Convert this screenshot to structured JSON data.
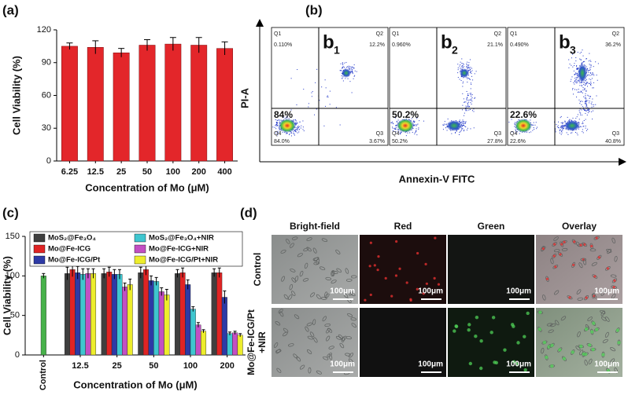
{
  "chart_data": [
    {
      "type": "bar",
      "panel_label": "(a)",
      "x_label": "Concentration of Mo (μM)",
      "y_label": "Cell Viability (%)",
      "categories": [
        "6.25",
        "12.5",
        "25",
        "50",
        "100",
        "200",
        "400"
      ],
      "values": [
        105,
        104,
        99,
        106,
        107,
        106,
        103
      ],
      "errors": [
        3,
        6,
        4,
        5,
        6,
        7,
        6
      ],
      "color": "#e3262a",
      "ylim": [
        0,
        120
      ],
      "yticks": [
        0,
        30,
        60,
        90,
        120
      ]
    },
    {
      "type": "grouped_bar",
      "panel_label": "(c)",
      "x_label": "Concentration of Mo (μM)",
      "y_label": "Cell Viability (%)",
      "categories": [
        "Control",
        "12.5",
        "25",
        "50",
        "100",
        "200"
      ],
      "series": [
        {
          "name": "MoS₂@Fe₃O₄",
          "color": "#3f3f3f",
          "values": [
            null,
            103,
            103,
            104,
            103,
            104
          ],
          "errors": [
            null,
            8,
            6,
            7,
            5,
            5
          ]
        },
        {
          "name": "Mo@Fe-ICG",
          "color": "#e02424",
          "values": [
            null,
            108,
            105,
            108,
            104,
            104
          ],
          "errors": [
            null,
            9,
            6,
            7,
            6,
            6
          ]
        },
        {
          "name": "Mo@Fe-ICG/Pt",
          "color": "#2d3aa6",
          "values": [
            null,
            104,
            102,
            94,
            89,
            73
          ],
          "errors": [
            null,
            8,
            6,
            6,
            6,
            8
          ]
        },
        {
          "name": "MoS₂@Fe₃O₄+NIR",
          "color": "#3fc6cf",
          "values": [
            null,
            102,
            102,
            93,
            58,
            27
          ],
          "errors": [
            null,
            7,
            6,
            5,
            3,
            2
          ]
        },
        {
          "name": "Mo@Fe-ICG+NIR",
          "color": "#c34fc3",
          "values": [
            null,
            103,
            86,
            80,
            38,
            28
          ],
          "errors": [
            null,
            6,
            5,
            5,
            3,
            2
          ]
        },
        {
          "name": "Mo@Fe-ICG/Pt+NIR",
          "color": "#eded2c",
          "values": [
            null,
            103,
            89,
            76,
            30,
            25
          ],
          "errors": [
            null,
            6,
            7,
            7,
            2,
            2
          ]
        },
        {
          "color": "#47b24a",
          "values": [
            100,
            null,
            null,
            null,
            null,
            null
          ],
          "errors": [
            3,
            null,
            null,
            null,
            null,
            null
          ]
        }
      ],
      "ylim": [
        0,
        150
      ],
      "yticks": [
        0,
        50,
        100,
        150
      ]
    }
  ],
  "flow_cytometry": {
    "panel_label": "(b)",
    "y_label": "PI-A",
    "x_label": "Annexin-V FITC",
    "plots": [
      {
        "label": "b",
        "subscript": "1",
        "main_percent": "84%",
        "quadrants": [
          {
            "name": "Q1",
            "value": "0.110%"
          },
          {
            "name": "Q2",
            "value": "12.2%"
          },
          {
            "name": "Q3",
            "value": "3.67%"
          },
          {
            "name": "Q4",
            "value": "84.0%"
          }
        ]
      },
      {
        "label": "b",
        "subscript": "2",
        "main_percent": "50.2%",
        "quadrants": [
          {
            "name": "Q1",
            "value": "0.960%"
          },
          {
            "name": "Q2",
            "value": "21.1%"
          },
          {
            "name": "Q3",
            "value": "27.8%"
          },
          {
            "name": "Q4",
            "value": "50.2%"
          }
        ]
      },
      {
        "label": "b",
        "subscript": "3",
        "main_percent": "22.6%",
        "quadrants": [
          {
            "name": "Q1",
            "value": "0.490%"
          },
          {
            "name": "Q2",
            "value": "36.2%"
          },
          {
            "name": "Q3",
            "value": "40.8%"
          },
          {
            "name": "Q4",
            "value": "22.6%"
          }
        ]
      }
    ]
  },
  "microscopy": {
    "panel_label": "(d)",
    "columns": [
      "Bright-field",
      "Red",
      "Green",
      "Overlay"
    ],
    "rows": [
      {
        "label": [
          "Control"
        ],
        "scale_bars": [
          "100μm",
          "100μm",
          "100μm",
          "100μm"
        ]
      },
      {
        "label": [
          "Mo@Fe-ICG/Pt",
          "+NIR"
        ],
        "scale_bars": [
          "100μm",
          "100μm",
          "100μm",
          "100μm"
        ]
      }
    ]
  }
}
